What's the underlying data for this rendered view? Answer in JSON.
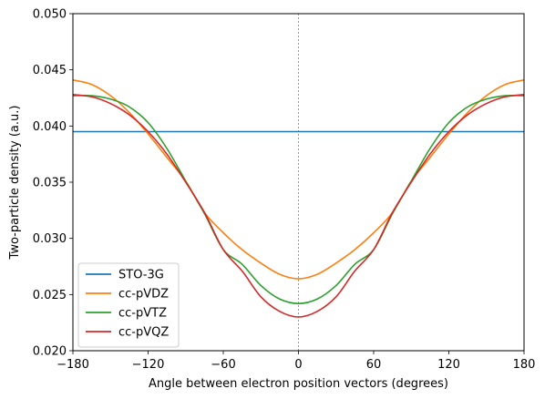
{
  "chart_data": {
    "type": "line",
    "title": "",
    "xlabel": "Angle between electron position vectors (degrees)",
    "ylabel": "Two-particle density (a.u.)",
    "xlim": [
      -180,
      180
    ],
    "ylim": [
      0.02,
      0.05
    ],
    "xticks": [
      -180,
      -120,
      -60,
      0,
      60,
      120,
      180
    ],
    "xtick_labels": [
      "−180",
      "−120",
      "−60",
      "0",
      "60",
      "120",
      "180"
    ],
    "yticks": [
      0.02,
      0.025,
      0.03,
      0.035,
      0.04,
      0.045,
      0.05
    ],
    "ytick_labels": [
      "0.020",
      "0.025",
      "0.030",
      "0.035",
      "0.040",
      "0.045",
      "0.050"
    ],
    "grid": false,
    "vertical_reference_line_x": 0,
    "legend_position": "lower-left",
    "x": [
      -180,
      -165,
      -150,
      -135,
      -120,
      -105,
      -90,
      -75,
      -60,
      -45,
      -30,
      -15,
      0,
      15,
      30,
      45,
      60,
      75,
      90,
      105,
      120,
      135,
      150,
      165,
      180
    ],
    "series": [
      {
        "name": "STO-3G",
        "color": "#1f77b4",
        "values": [
          0.0395,
          0.0395,
          0.0395,
          0.0395,
          0.0395,
          0.0395,
          0.0395,
          0.0395,
          0.0395,
          0.0395,
          0.0395,
          0.0395,
          0.0395,
          0.0395,
          0.0395,
          0.0395,
          0.0395,
          0.0395,
          0.0395,
          0.0395,
          0.0395,
          0.0395,
          0.0395,
          0.0395,
          0.0395
        ]
      },
      {
        "name": "cc-pVDZ",
        "color": "#ff7f0e",
        "values": [
          0.0441,
          0.0437,
          0.0427,
          0.0412,
          0.0393,
          0.0372,
          0.0351,
          0.0323,
          0.0305,
          0.029,
          0.0278,
          0.0268,
          0.0264,
          0.0268,
          0.0278,
          0.029,
          0.0305,
          0.0323,
          0.0351,
          0.0372,
          0.0393,
          0.0412,
          0.0427,
          0.0437,
          0.0441
        ]
      },
      {
        "name": "cc-pVTZ",
        "color": "#2ca02c",
        "values": [
          0.0427,
          0.0427,
          0.0424,
          0.0417,
          0.0403,
          0.038,
          0.0351,
          0.0322,
          0.029,
          0.0277,
          0.0258,
          0.0246,
          0.0242,
          0.0246,
          0.0258,
          0.0277,
          0.029,
          0.0322,
          0.0351,
          0.038,
          0.0403,
          0.0417,
          0.0424,
          0.0427,
          0.0427
        ]
      },
      {
        "name": "cc-pVQZ",
        "color": "#d62728",
        "values": [
          0.0428,
          0.0426,
          0.042,
          0.041,
          0.0395,
          0.0375,
          0.035,
          0.0323,
          0.029,
          0.0271,
          0.0248,
          0.0235,
          0.023,
          0.0235,
          0.0248,
          0.0271,
          0.029,
          0.0323,
          0.035,
          0.0375,
          0.0395,
          0.041,
          0.042,
          0.0426,
          0.0428
        ]
      }
    ]
  }
}
